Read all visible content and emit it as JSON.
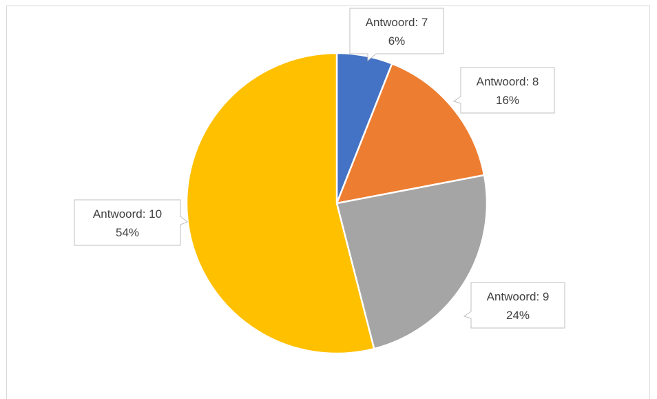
{
  "chart_data": {
    "type": "pie",
    "title": "",
    "slices": [
      {
        "label": "Antwoord: 7",
        "percent_label": "6%",
        "value": 6,
        "color": "#4472C4"
      },
      {
        "label": "Antwoord: 8",
        "percent_label": "16%",
        "value": 16,
        "color": "#ED7D31"
      },
      {
        "label": "Antwoord: 9",
        "percent_label": "24%",
        "value": 24,
        "color": "#A5A5A5"
      },
      {
        "label": "Antwoord: 10",
        "percent_label": "54%",
        "value": 54,
        "color": "#FFC000"
      }
    ],
    "legend": "none",
    "data_labels": "callouts"
  }
}
